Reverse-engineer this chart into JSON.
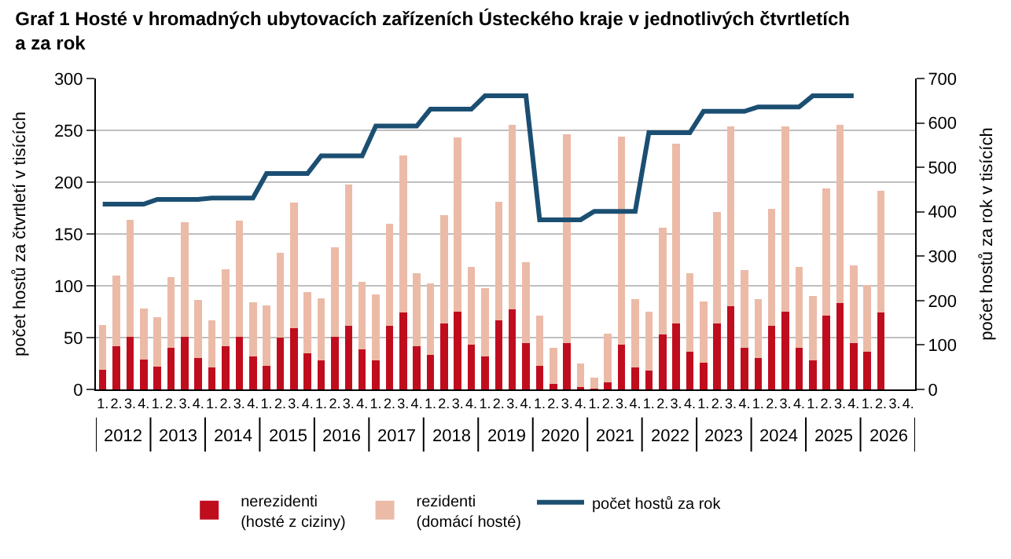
{
  "chart_data": {
    "type": "bar",
    "stacked": true,
    "title": "Graf 1 Hosté v hromadných ubytovacích zařízeních Ústeckého kraje v jednotlivých čtvrtletích\na za rok",
    "ylabel": "počet hostů za čtvrtletí v tisících",
    "y2label": "počet hostů za rok v tisících",
    "categories": [
      "1.",
      "2.",
      "3.",
      "4.",
      "1.",
      "2.",
      "3.",
      "4.",
      "1.",
      "2.",
      "3.",
      "4.",
      "1.",
      "2.",
      "3.",
      "4.",
      "1.",
      "2.",
      "3.",
      "4.",
      "1.",
      "2.",
      "3.",
      "4.",
      "1.",
      "2.",
      "3.",
      "4.",
      "1.",
      "2.",
      "3.",
      "4.",
      "1.",
      "2.",
      "3.",
      "4.",
      "1.",
      "2.",
      "3.",
      "4.",
      "1.",
      "2.",
      "3.",
      "4.",
      "1.",
      "2.",
      "3.",
      "4.",
      "1.",
      "2.",
      "3.",
      "4.",
      "1.",
      "2.",
      "3.",
      "4.",
      "1.",
      "2.",
      "3.",
      "4."
    ],
    "annotations": [
      "2012",
      "2013",
      "2014",
      "2015",
      "2016",
      "2017",
      "2018",
      "2019",
      "2020",
      "2021",
      "2022",
      "2023",
      "2024",
      "2025",
      "2026"
    ],
    "series": [
      {
        "name": "nerezidenti\n(hosté z ciziny)",
        "color": "#c00d1e",
        "values": [
          19,
          42,
          51,
          29,
          22,
          40,
          51,
          30,
          21,
          42,
          51,
          32,
          23,
          50,
          59,
          35,
          28,
          51,
          61,
          39,
          28,
          61,
          74,
          42,
          33,
          64,
          75,
          43,
          32,
          67,
          77,
          45,
          23,
          5,
          45,
          2,
          1,
          7,
          43,
          21,
          18,
          53,
          64,
          36,
          26,
          64,
          80,
          40,
          30,
          61,
          75,
          40,
          28,
          71,
          83,
          45,
          36,
          74,
          null,
          null
        ]
      },
      {
        "name": "rezidenti\n(domácí hosté)",
        "color": "#ebbba8",
        "values": [
          43,
          68,
          113,
          49,
          48,
          68,
          110,
          56,
          46,
          74,
          112,
          52,
          58,
          82,
          121,
          59,
          60,
          86,
          137,
          65,
          64,
          99,
          152,
          70,
          69,
          104,
          168,
          75,
          66,
          114,
          178,
          78,
          48,
          35,
          201,
          23,
          10,
          47,
          201,
          66,
          57,
          103,
          173,
          76,
          59,
          107,
          174,
          75,
          57,
          113,
          179,
          78,
          62,
          123,
          172,
          75,
          65,
          118,
          null,
          null
        ]
      },
      {
        "name": "počet hostů za rok",
        "type": "line",
        "axis": "y2",
        "color": "#1b4f72",
        "values": [
          417,
          417,
          417,
          417,
          428,
          428,
          428,
          428,
          431,
          431,
          431,
          431,
          486,
          486,
          486,
          486,
          526,
          526,
          526,
          526,
          593,
          593,
          593,
          593,
          631,
          631,
          631,
          631,
          661,
          661,
          661,
          661,
          382,
          382,
          382,
          382,
          401,
          401,
          401,
          401,
          578,
          578,
          578,
          578,
          626,
          626,
          626,
          626,
          636,
          636,
          636,
          636,
          661,
          661,
          661,
          661,
          null,
          null,
          null,
          null
        ]
      }
    ],
    "ylim": [
      0,
      300
    ],
    "yticks": [
      0,
      50,
      100,
      150,
      200,
      250,
      300
    ],
    "y2lim": [
      0,
      700
    ],
    "y2ticks": [
      0,
      100,
      200,
      300,
      400,
      500,
      600,
      700
    ],
    "grid": "y",
    "legend": "bottom",
    "marker": "none"
  }
}
